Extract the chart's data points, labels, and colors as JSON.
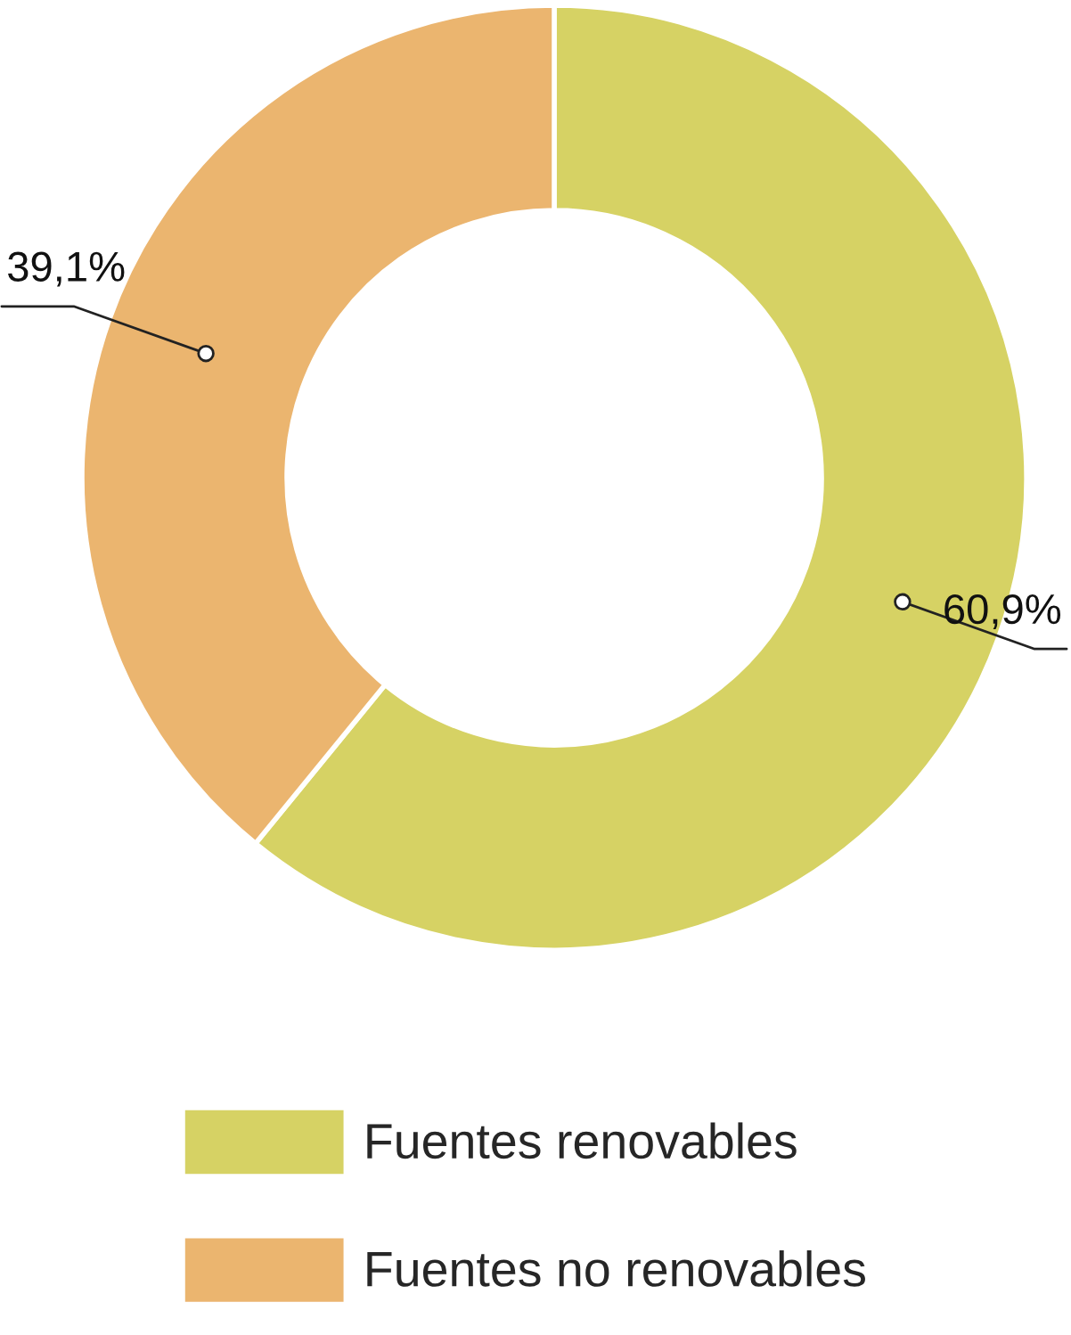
{
  "chart_data": {
    "type": "donut",
    "categories": [
      "Fuentes renovables",
      "Fuentes no renovables"
    ],
    "values": [
      60.9,
      39.1
    ],
    "colors": [
      "#d6d264",
      "#ebb56f"
    ],
    "value_labels": [
      "60,9%",
      "39,1%"
    ],
    "legend": "bottom"
  }
}
